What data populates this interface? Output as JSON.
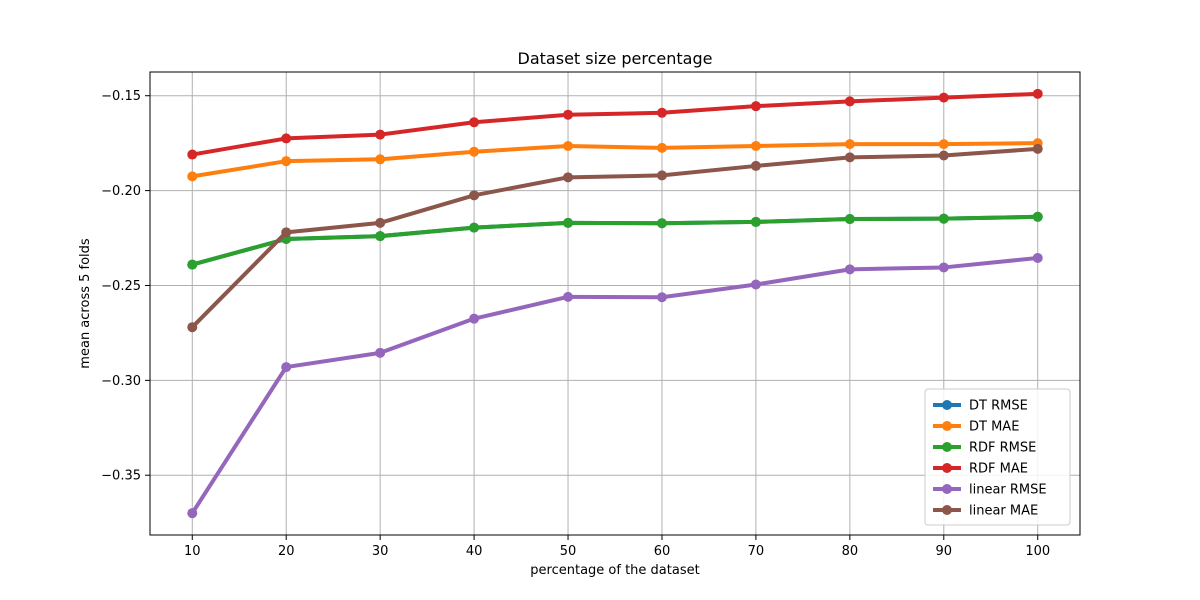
{
  "chart_data": {
    "type": "line",
    "title": "Dataset size percentage",
    "xlabel": "percentage of the dataset",
    "ylabel": "mean across 5 folds",
    "x": [
      10,
      20,
      30,
      40,
      50,
      60,
      70,
      80,
      90,
      100
    ],
    "xticks": [
      "10",
      "20",
      "30",
      "40",
      "50",
      "60",
      "70",
      "80",
      "90",
      "100"
    ],
    "yticks": [
      "−0.35",
      "−0.30",
      "−0.25",
      "−0.20",
      "−0.15"
    ],
    "ytick_values": [
      -0.35,
      -0.3,
      -0.25,
      -0.2,
      -0.15
    ],
    "xlim": [
      5.5,
      104.5
    ],
    "ylim": [
      -0.3815,
      -0.1375
    ],
    "grid": true,
    "legend_position": "lower-right",
    "series": [
      {
        "name": "DT RMSE",
        "color": "#1f77b4",
        "values": [
          -0.239,
          -0.2255,
          -0.224,
          -0.2195,
          -0.217,
          -0.2172,
          -0.2165,
          -0.215,
          -0.2148,
          -0.2138
        ]
      },
      {
        "name": "DT MAE",
        "color": "#ff7f0e",
        "values": [
          -0.1925,
          -0.1845,
          -0.1835,
          -0.1795,
          -0.1765,
          -0.1775,
          -0.1765,
          -0.1755,
          -0.1755,
          -0.175
        ]
      },
      {
        "name": "RDF RMSE",
        "color": "#2ca02c",
        "values": [
          -0.239,
          -0.2255,
          -0.224,
          -0.2195,
          -0.217,
          -0.2172,
          -0.2165,
          -0.215,
          -0.2148,
          -0.2138
        ]
      },
      {
        "name": "RDF MAE",
        "color": "#d62728",
        "values": [
          -0.181,
          -0.1725,
          -0.1705,
          -0.164,
          -0.16,
          -0.159,
          -0.1555,
          -0.153,
          -0.151,
          -0.149
        ]
      },
      {
        "name": "linear RMSE",
        "color": "#9467bd",
        "values": [
          -0.37,
          -0.293,
          -0.2855,
          -0.2675,
          -0.256,
          -0.2562,
          -0.2495,
          -0.2415,
          -0.2405,
          -0.2355
        ]
      },
      {
        "name": "linear MAE",
        "color": "#8c564b",
        "values": [
          -0.272,
          -0.222,
          -0.217,
          -0.2025,
          -0.193,
          -0.192,
          -0.187,
          -0.1825,
          -0.1815,
          -0.178
        ]
      }
    ]
  }
}
